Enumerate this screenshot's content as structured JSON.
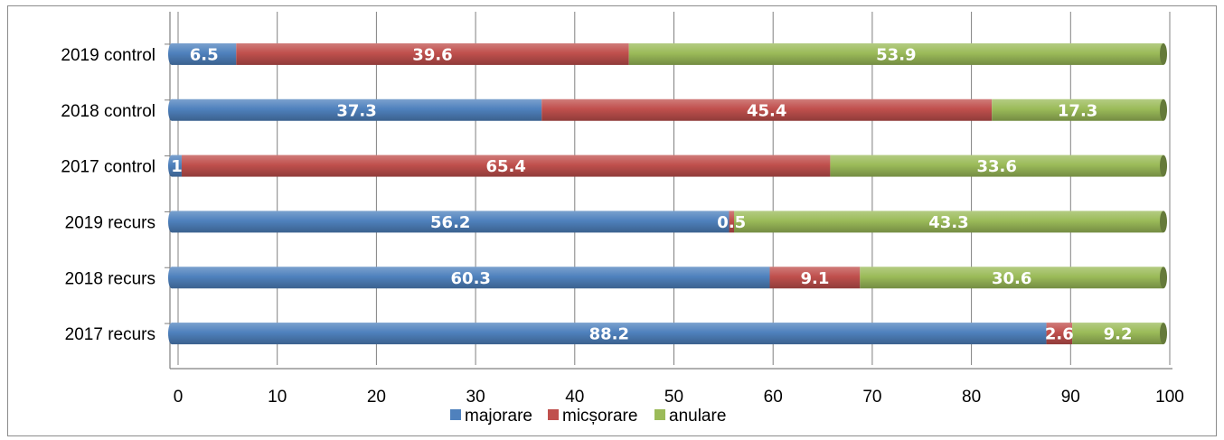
{
  "chart_data": {
    "type": "bar",
    "orientation": "horizontal",
    "stacked": true,
    "categories": [
      "2019 control",
      "2018 control",
      "2017 control",
      "2019 recurs",
      "2018 recurs",
      "2017 recurs"
    ],
    "series": [
      {
        "name": "majorare",
        "color": "#4f81bd",
        "values": [
          6.5,
          37.3,
          1,
          56.2,
          60.3,
          88.2
        ]
      },
      {
        "name": "micșorare",
        "color": "#c0504d",
        "values": [
          39.6,
          45.4,
          65.4,
          0.5,
          9.1,
          2.6
        ]
      },
      {
        "name": "anulare",
        "color": "#9bbb59",
        "values": [
          53.9,
          17.3,
          33.6,
          43.3,
          30.6,
          9.2
        ]
      }
    ],
    "xlim": [
      0,
      100
    ],
    "xticks": [
      "0",
      "10",
      "20",
      "30",
      "40",
      "50",
      "60",
      "70",
      "80",
      "90",
      "100"
    ],
    "grid": true,
    "legend_position": "bottom",
    "title": "",
    "xlabel": "",
    "ylabel": ""
  }
}
